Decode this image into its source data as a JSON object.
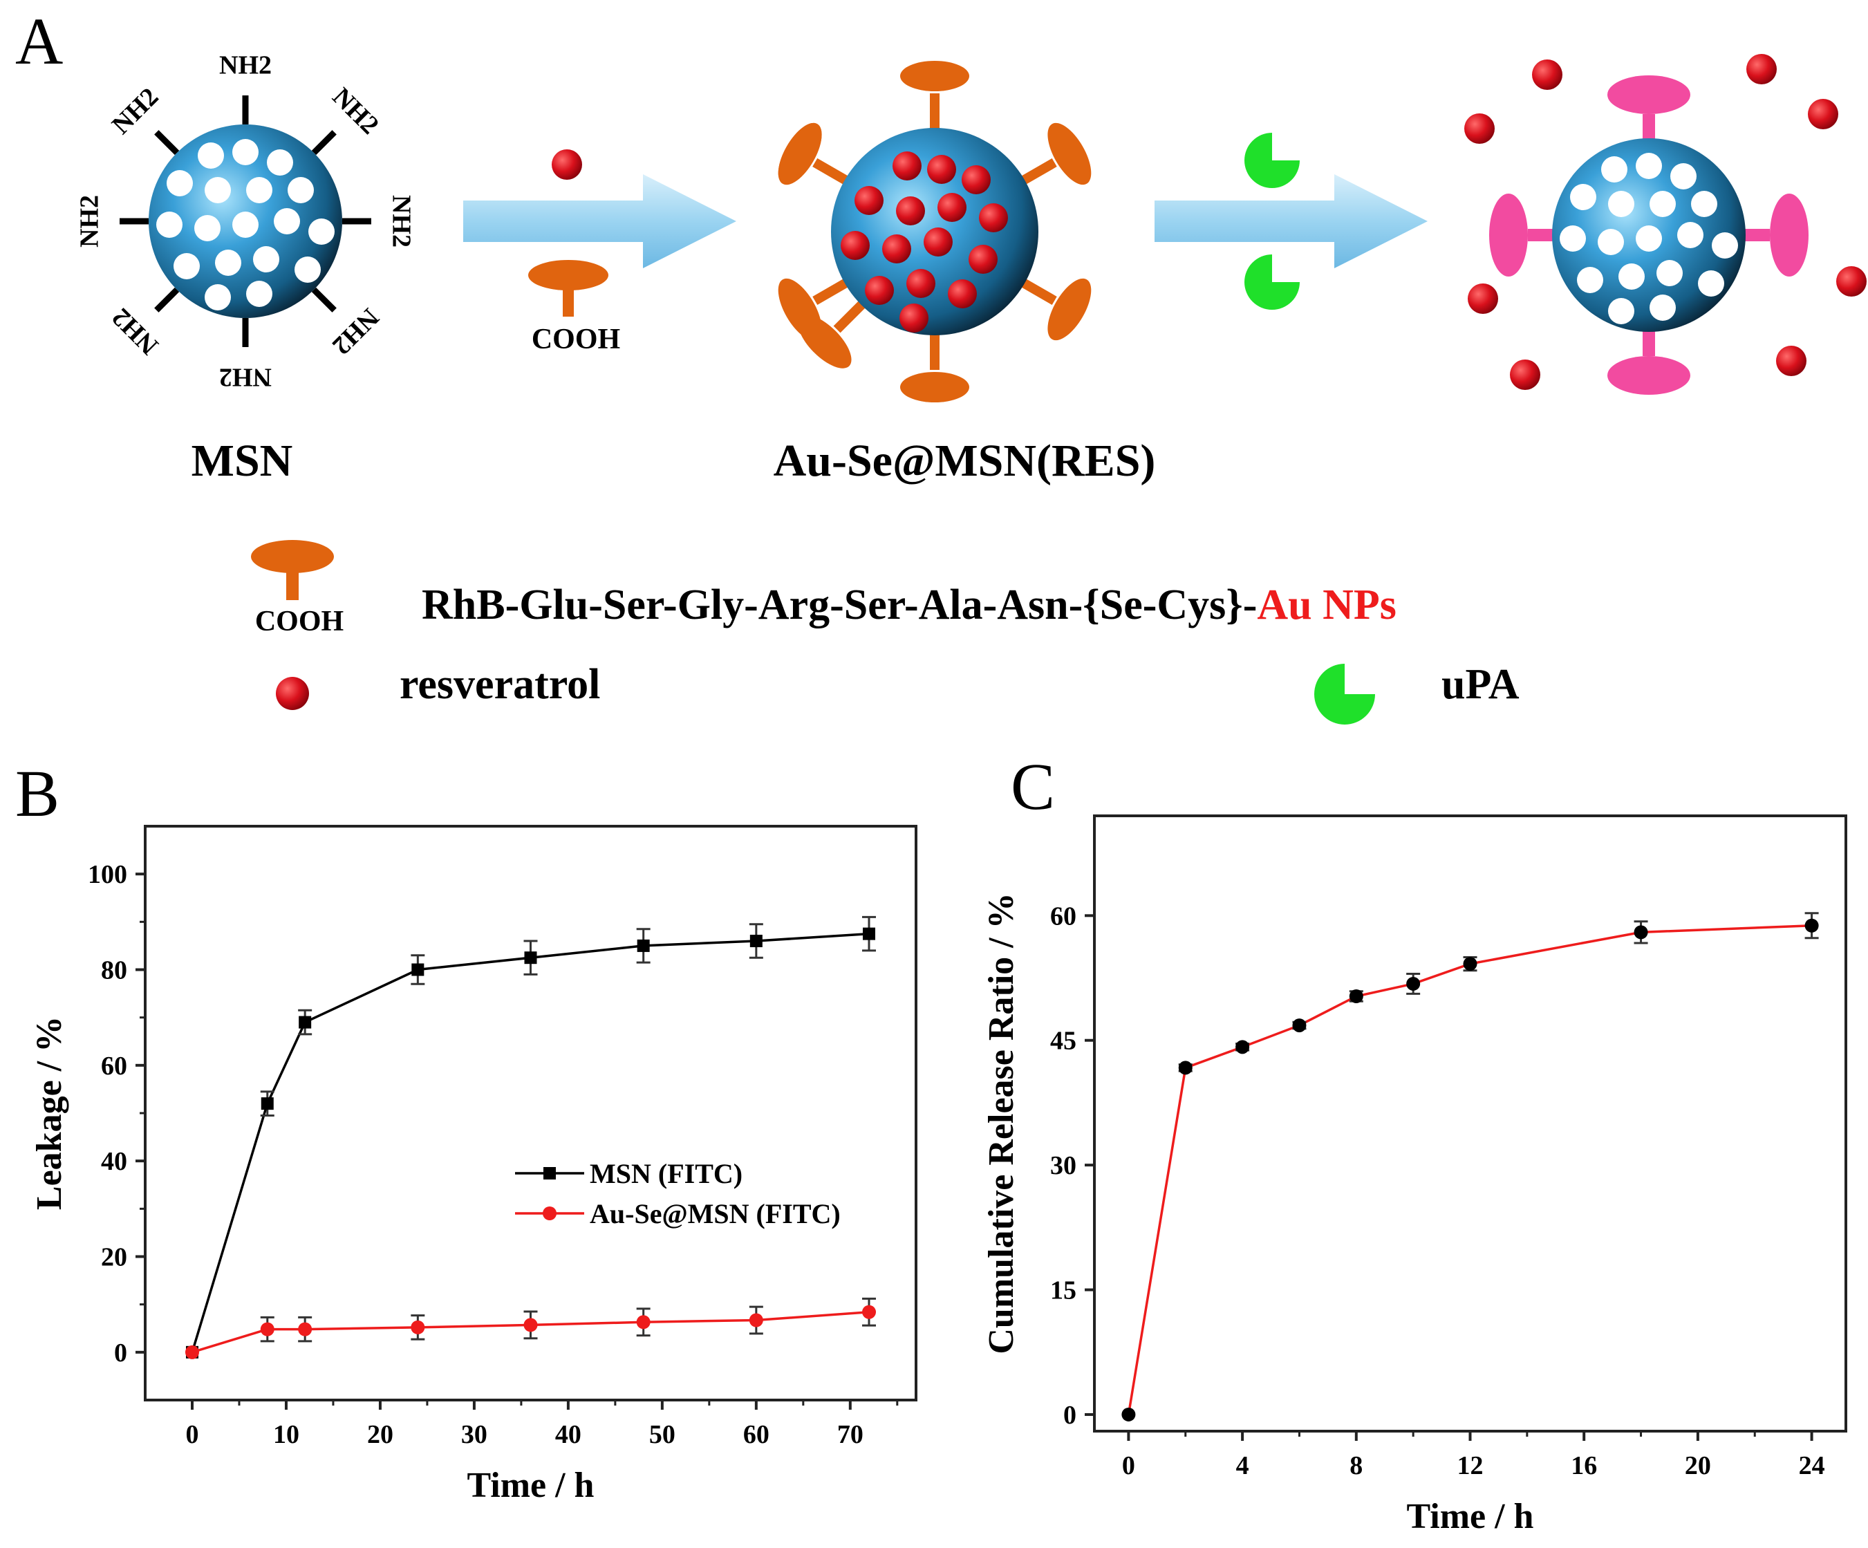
{
  "panel_a": {
    "letter": "A",
    "msn_label": "MSN",
    "loaded_label": "Au-Se@MSN(RES)",
    "amine_group": "NH2",
    "cooh_small": "COOH",
    "legend": {
      "peptide_cooh": "COOH",
      "peptide_sequence": "RhB-Glu-Ser-Gly-Arg-Ser-Ala-Asn-{Se-Cys}-",
      "peptide_tail": "Au NPs",
      "resveratrol": "resveratrol",
      "upa": "uPA"
    },
    "colors": {
      "sphere": "#3aa0d8",
      "pore": "#ffffff",
      "peptide": "#e0640f",
      "cleaved_peptide": "#f24ba0",
      "resveratrol": "#d9111c",
      "upa": "#1fe02a",
      "arrow": "#8fd0f2",
      "red_text": "#ee1c1c"
    }
  },
  "panel_b": {
    "letter": "B",
    "chart_data": {
      "type": "line",
      "xlabel": "Time / h",
      "ylabel": "Leakage / %",
      "xlim": [
        -5,
        77
      ],
      "ylim": [
        -10,
        110
      ],
      "xticks": [
        0,
        10,
        20,
        30,
        40,
        50,
        60,
        70
      ],
      "yticks": [
        0,
        20,
        40,
        60,
        80,
        100
      ],
      "legend_position": "center-right",
      "series": [
        {
          "name": "MSN (FITC)",
          "color": "#000000",
          "marker": "square",
          "x": [
            0,
            8,
            12,
            24,
            36,
            48,
            60,
            72
          ],
          "y": [
            0,
            52,
            69,
            80,
            82.5,
            85,
            86,
            87.5
          ],
          "err": [
            0,
            2.5,
            2.5,
            3,
            3.5,
            3.5,
            3.5,
            3.5
          ]
        },
        {
          "name": "Au-Se@MSN (FITC)",
          "color": "#ee1c1c",
          "marker": "circle",
          "x": [
            0,
            8,
            12,
            24,
            36,
            48,
            60,
            72
          ],
          "y": [
            0,
            4.8,
            4.8,
            5.2,
            5.7,
            6.3,
            6.7,
            8.4
          ],
          "err": [
            0,
            2.5,
            2.5,
            2.5,
            2.8,
            2.8,
            2.8,
            2.8
          ]
        }
      ]
    }
  },
  "panel_c": {
    "letter": "C",
    "chart_data": {
      "type": "line",
      "xlabel": "Time / h",
      "ylabel": "Cumulative Release Ratio / %",
      "xlim": [
        -1.2,
        25.2
      ],
      "ylim": [
        -2,
        72
      ],
      "xticks": [
        0,
        4,
        8,
        12,
        16,
        20,
        24
      ],
      "yticks": [
        0,
        15,
        30,
        45,
        60
      ],
      "series": [
        {
          "name": "Au-Se@MSN(RES)",
          "color": "#ee1c1c",
          "marker": "circle",
          "x": [
            0,
            2,
            4,
            6,
            8,
            10,
            12,
            18,
            24
          ],
          "y": [
            0,
            41.7,
            44.2,
            46.8,
            50.3,
            51.8,
            54.2,
            58,
            58.8
          ],
          "err": [
            0,
            0.4,
            0.4,
            0.4,
            0.6,
            1.2,
            0.8,
            1.3,
            1.5
          ]
        }
      ]
    }
  }
}
